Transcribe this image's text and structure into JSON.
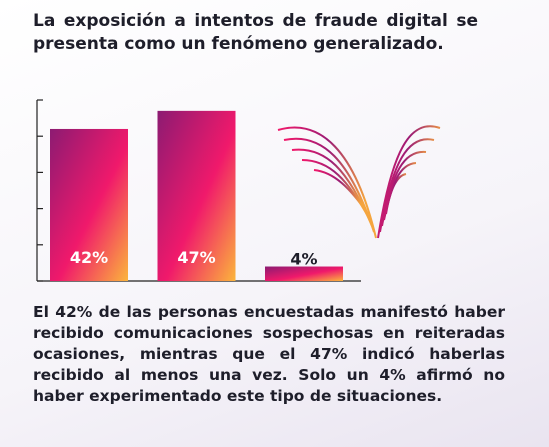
{
  "chart_data": {
    "type": "bar",
    "title": "La exposición a intentos de fraude digital se presenta como un fenómeno generalizado.",
    "description": "El 42% de las personas encuestadas manifestó haber recibido comunicaciones sospechosas en reiteradas ocasiones, mientras que el 47% indicó haberlas recibido al menos una vez. Solo un 4% afirmó no haber experimentado este tipo de situaciones.",
    "categories": [
      null,
      null,
      null
    ],
    "values": [
      42,
      47,
      4
    ],
    "value_labels": [
      "42%",
      "47%",
      "4%"
    ],
    "ylim": [
      0,
      50
    ],
    "yticks": [
      0,
      10,
      20,
      30,
      40,
      50
    ]
  }
}
